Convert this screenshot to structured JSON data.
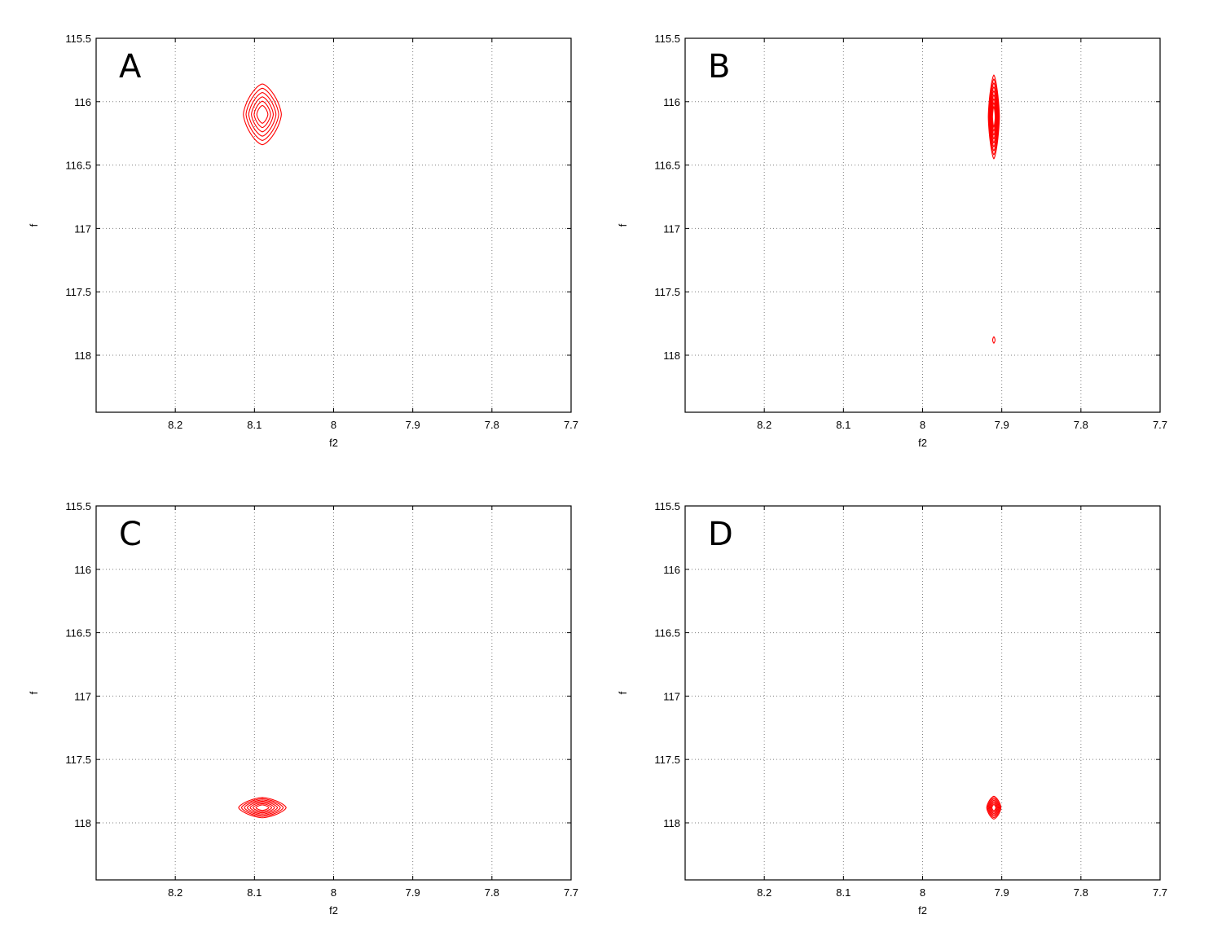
{
  "figure": {
    "background": "#ffffff",
    "contour_color": "#ff0000",
    "grid_color": "#7f7f7f"
  },
  "chart_data": [
    {
      "type": "contour",
      "panel_label": "A",
      "xlabel": "f2",
      "ylabel": "f",
      "xlim": [
        8.3,
        7.7
      ],
      "ylim": [
        115.5,
        118.45
      ],
      "x_inverted": true,
      "y_inverted": true,
      "xticks": [
        8.2,
        8.1,
        8,
        7.9,
        7.8,
        7.7
      ],
      "xtick_labels": [
        "8.2",
        "8.1",
        "8",
        "7.9",
        "7.8",
        "7.7"
      ],
      "yticks": [
        115.5,
        116,
        116.5,
        117,
        117.5,
        118
      ],
      "ytick_labels": [
        "115.5",
        "116",
        "116.5",
        "117",
        "117.5",
        "118"
      ],
      "grid": true,
      "peaks": [
        {
          "x": 8.09,
          "y": 116.1,
          "x_halfwidth": 0.024,
          "y_halfwidth": 0.24,
          "levels": 6
        }
      ]
    },
    {
      "type": "contour",
      "panel_label": "B",
      "xlabel": "f2",
      "ylabel": "f",
      "xlim": [
        8.3,
        7.7
      ],
      "ylim": [
        115.5,
        118.45
      ],
      "x_inverted": true,
      "y_inverted": true,
      "xticks": [
        8.2,
        8.1,
        8,
        7.9,
        7.8,
        7.7
      ],
      "xtick_labels": [
        "8.2",
        "8.1",
        "8",
        "7.9",
        "7.8",
        "7.7"
      ],
      "yticks": [
        115.5,
        116,
        116.5,
        117,
        117.5,
        118
      ],
      "ytick_labels": [
        "115.5",
        "116",
        "116.5",
        "117",
        "117.5",
        "118"
      ],
      "grid": true,
      "peaks": [
        {
          "x": 7.91,
          "y": 116.12,
          "x_halfwidth": 0.007,
          "y_halfwidth": 0.33,
          "levels": 9
        },
        {
          "x": 7.91,
          "y": 117.88,
          "x_halfwidth": 0.0015,
          "y_halfwidth": 0.025,
          "levels": 1
        }
      ]
    },
    {
      "type": "contour",
      "panel_label": "C",
      "xlabel": "f2",
      "ylabel": "f",
      "xlim": [
        8.3,
        7.7
      ],
      "ylim": [
        115.5,
        118.45
      ],
      "x_inverted": true,
      "y_inverted": true,
      "xticks": [
        8.2,
        8.1,
        8,
        7.9,
        7.8,
        7.7
      ],
      "xtick_labels": [
        "8.2",
        "8.1",
        "8",
        "7.9",
        "7.8",
        "7.7"
      ],
      "yticks": [
        115.5,
        116,
        116.5,
        117,
        117.5,
        118
      ],
      "ytick_labels": [
        "115.5",
        "116",
        "116.5",
        "117",
        "117.5",
        "118"
      ],
      "grid": true,
      "peaks": [
        {
          "x": 8.09,
          "y": 117.88,
          "x_halfwidth": 0.03,
          "y_halfwidth": 0.08,
          "levels": 7
        }
      ]
    },
    {
      "type": "contour",
      "panel_label": "D",
      "xlabel": "f2",
      "ylabel": "f",
      "xlim": [
        8.3,
        7.7
      ],
      "ylim": [
        115.5,
        118.45
      ],
      "x_inverted": true,
      "y_inverted": true,
      "xticks": [
        8.2,
        8.1,
        8,
        7.9,
        7.8,
        7.7
      ],
      "xtick_labels": [
        "8.2",
        "8.1",
        "8",
        "7.9",
        "7.8",
        "7.7"
      ],
      "yticks": [
        115.5,
        116,
        116.5,
        117,
        117.5,
        118
      ],
      "ytick_labels": [
        "115.5",
        "116",
        "116.5",
        "117",
        "117.5",
        "118"
      ],
      "grid": true,
      "peaks": [
        {
          "x": 7.91,
          "y": 117.88,
          "x_halfwidth": 0.009,
          "y_halfwidth": 0.09,
          "levels": 7
        }
      ]
    }
  ]
}
